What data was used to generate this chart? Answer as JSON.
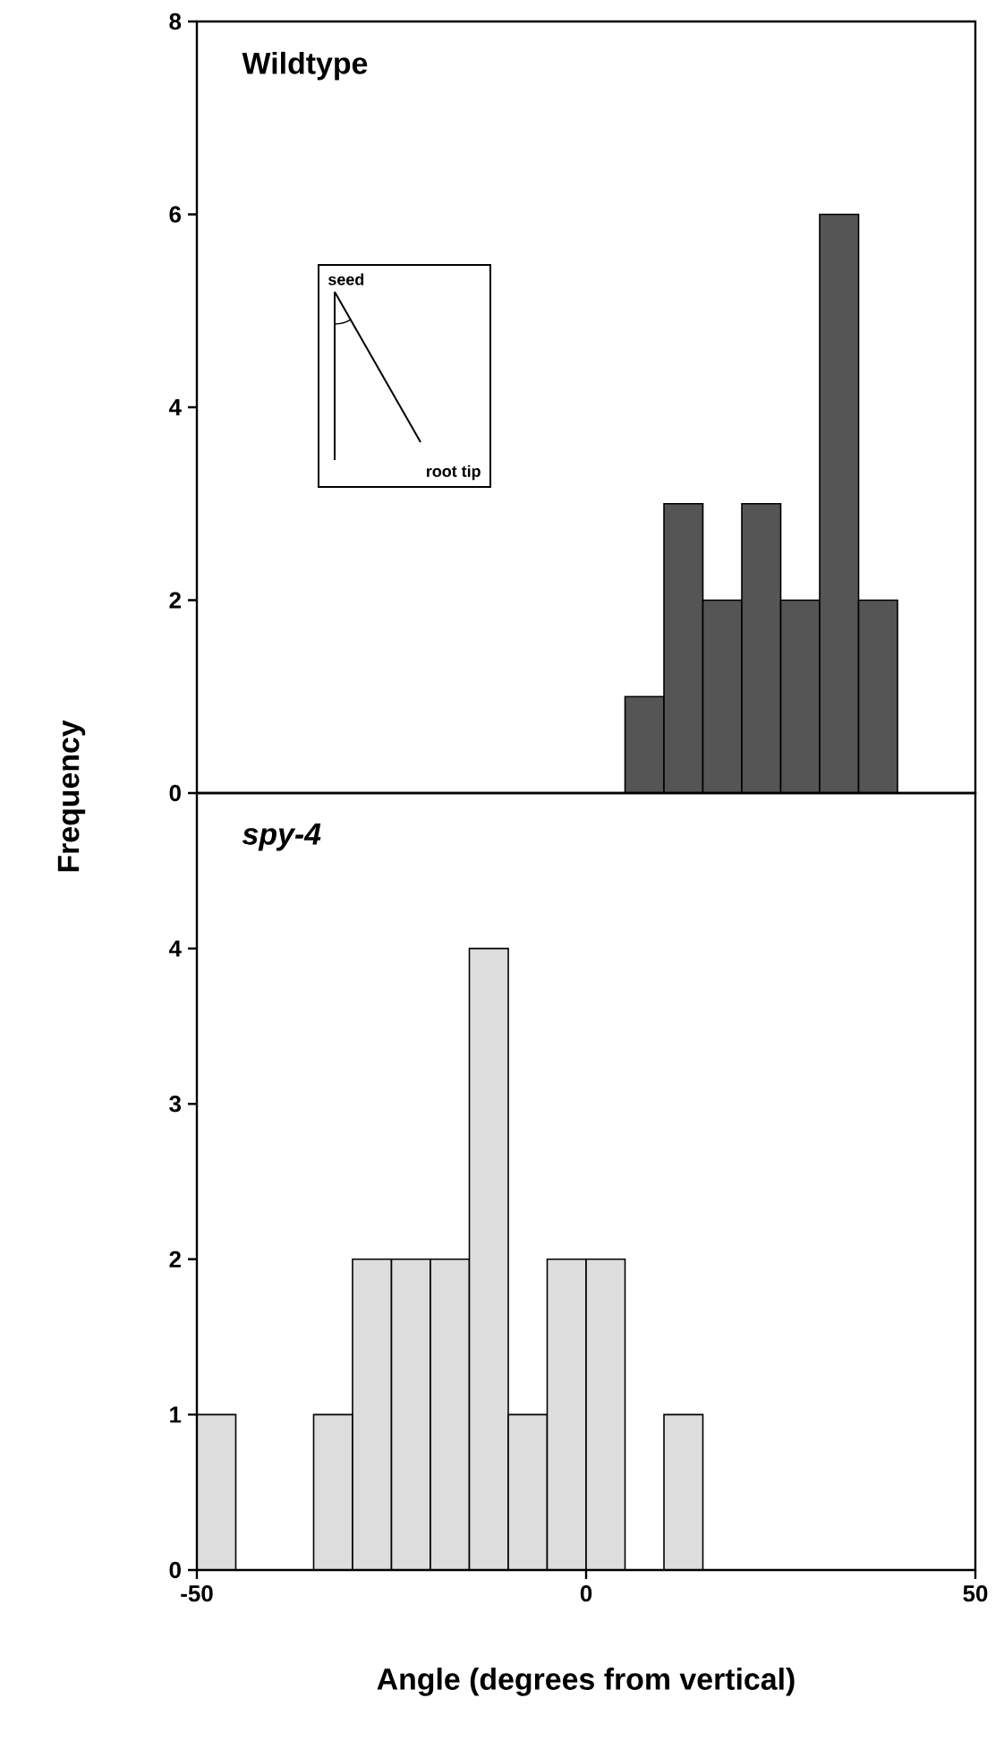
{
  "chart_data": [
    {
      "type": "histogram",
      "title": "Wildtype",
      "ylabel": "Frequency",
      "bins": [
        5,
        10,
        15,
        20,
        25,
        30,
        35,
        40
      ],
      "values": [
        1,
        3,
        2,
        3,
        2,
        6,
        2
      ],
      "color": "#555555",
      "xlim": [
        -50,
        50
      ],
      "ylim": [
        0,
        8
      ],
      "yticks": [
        0,
        2,
        4,
        6,
        8
      ],
      "tick_labels": "y",
      "annotations": [
        "seed",
        "root tip"
      ]
    },
    {
      "type": "histogram",
      "title": "spy-4",
      "xlabel": "Angle (degrees from vertical)",
      "bins": [
        -50,
        -45,
        -40,
        -35,
        -30,
        -25,
        -20,
        -15,
        -10,
        -5,
        0,
        5,
        10,
        15
      ],
      "values": [
        1,
        0,
        0,
        1,
        2,
        2,
        2,
        4,
        1,
        2,
        2,
        0,
        1
      ],
      "color": "#dddddd",
      "xlim": [
        -50,
        50
      ],
      "xticks": [
        -50,
        0,
        50
      ],
      "ylim": [
        0,
        5
      ],
      "yticks": [
        0,
        1,
        2,
        3,
        4
      ]
    }
  ]
}
